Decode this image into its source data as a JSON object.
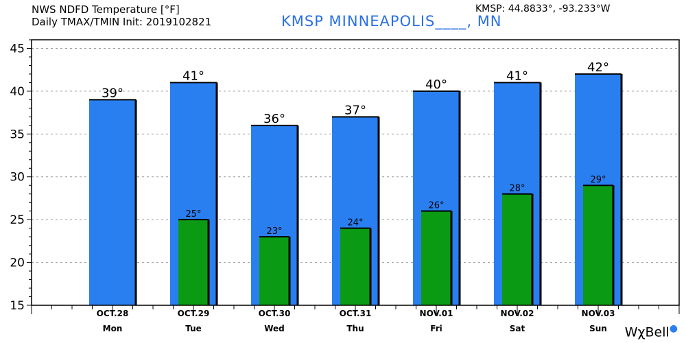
{
  "header": {
    "line1": "NWS NDFD Temperature [°F]",
    "line2": "Daily TMAX/TMIN Init: 2019102821",
    "station": "KMSP MINNEAPOLIS____, MN",
    "coords": "KMSP: 44.8833°, -93.233°W"
  },
  "logo": {
    "text": "WχBell"
  },
  "colors": {
    "tmax": "#2a7ff0",
    "tmin": "#0b9a14",
    "grid": "#999999"
  },
  "chart_data": {
    "type": "bar",
    "categories": [
      "OCT.28",
      "OCT.29",
      "OCT.30",
      "OCT.31",
      "NOV.01",
      "NOV.02",
      "NOV.03"
    ],
    "weekdays": [
      "Mon",
      "Tue",
      "Wed",
      "Thu",
      "Fri",
      "Sat",
      "Sun"
    ],
    "series": [
      {
        "name": "TMAX",
        "values": [
          39,
          41,
          36,
          37,
          40,
          41,
          42
        ],
        "labels": [
          "39°",
          "41°",
          "36°",
          "37°",
          "40°",
          "41°",
          "42°"
        ]
      },
      {
        "name": "TMIN",
        "values": [
          null,
          25,
          23,
          24,
          26,
          28,
          29
        ],
        "labels": [
          "",
          "25°",
          "23°",
          "24°",
          "26°",
          "28°",
          "29°"
        ]
      }
    ],
    "ylim": [
      15,
      46
    ],
    "yticks": [
      "15",
      "20",
      "25",
      "30",
      "35",
      "40",
      "45"
    ],
    "grid": true,
    "legend": "none"
  }
}
